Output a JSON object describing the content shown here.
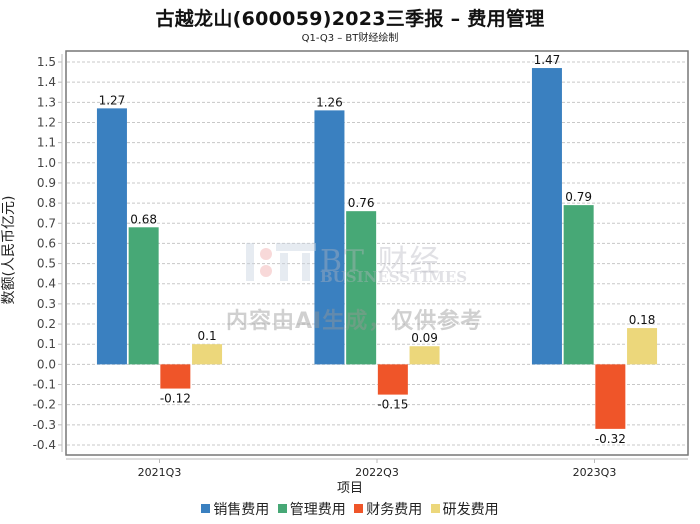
{
  "header": {
    "title": "古越龙山(600059)2023三季报 – 费用管理",
    "subtitle": "Q1-Q3 – BT财经绘制"
  },
  "watermark": {
    "brand": "BT 财经",
    "brand_en": "BUSINESSTIMES",
    "notice": "内容由AI生成，仅供参考"
  },
  "chart_data": {
    "type": "bar",
    "title": "古越龙山(600059)2023三季报 – 费用管理",
    "subtitle": "Q1-Q3 – BT财经绘制",
    "xlabel": "项目",
    "ylabel": "数额(人民币亿元)",
    "categories": [
      "2021Q3",
      "2022Q3",
      "2023Q3"
    ],
    "ylim": [
      -0.4,
      1.5
    ],
    "yticks": [
      "1.5",
      "1.4",
      "1.3",
      "1.2",
      "1.1",
      "1.0",
      "0.9",
      "0.8",
      "0.7",
      "0.6",
      "0.5",
      "0.4",
      "0.3",
      "0.2",
      "0.1",
      "0.0",
      "-0.1",
      "-0.2",
      "-0.3",
      "-0.4"
    ],
    "grid": true,
    "legend_position": "bottom",
    "series": [
      {
        "name": "销售费用",
        "color": "#3a80c0",
        "values": [
          1.27,
          1.26,
          1.47
        ],
        "labels": [
          "1.27",
          "1.26",
          "1.47"
        ]
      },
      {
        "name": "管理费用",
        "color": "#47a876",
        "values": [
          0.68,
          0.76,
          0.79
        ],
        "labels": [
          "0.68",
          "0.76",
          "0.79"
        ]
      },
      {
        "name": "财务费用",
        "color": "#ef5529",
        "values": [
          -0.12,
          -0.15,
          -0.32
        ],
        "labels": [
          "-0.12",
          "-0.15",
          "-0.32"
        ]
      },
      {
        "name": "研发费用",
        "color": "#ecd77b",
        "values": [
          0.1,
          0.09,
          0.18
        ],
        "labels": [
          "0.1",
          "0.09",
          "0.18"
        ]
      }
    ]
  }
}
